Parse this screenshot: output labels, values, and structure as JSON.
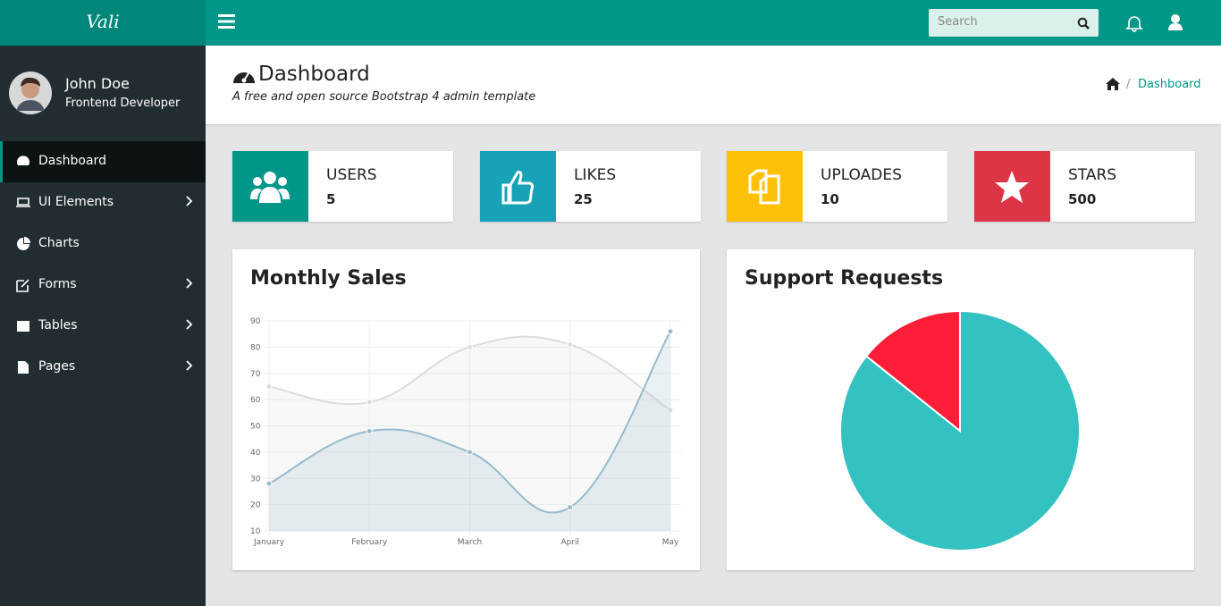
{
  "header": {
    "brand": "Vali",
    "search_placeholder": "Search"
  },
  "sidebar": {
    "user": {
      "name": "John Doe",
      "role": "Frontend Developer"
    },
    "menu": [
      "Dashboard",
      "UI Elements",
      "Charts",
      "Forms",
      "Tables",
      "Pages"
    ]
  },
  "page": {
    "title": "Dashboard",
    "subtitle": "A free and open source Bootstrap 4 admin template",
    "breadcrumb": "Dashboard"
  },
  "widgets": [
    {
      "label": "USERS",
      "value": "5",
      "color": "#009688"
    },
    {
      "label": "LIKES",
      "value": "25",
      "color": "#17a2b8"
    },
    {
      "label": "UPLOADES",
      "value": "10",
      "color": "#ffc107"
    },
    {
      "label": "STARS",
      "value": "500",
      "color": "#dc3545"
    }
  ],
  "chart_data": [
    {
      "type": "line",
      "title": "Monthly Sales",
      "categories": [
        "January",
        "February",
        "March",
        "April",
        "May"
      ],
      "series": [
        {
          "color": "#dcdcdc",
          "values": [
            65,
            59,
            80,
            81,
            56
          ]
        },
        {
          "color": "#97bbcd",
          "values": [
            28,
            48,
            40,
            19,
            86
          ]
        }
      ],
      "ylim": [
        10,
        90
      ],
      "yticks": [
        10,
        20,
        30,
        40,
        50,
        60,
        70,
        80,
        90
      ],
      "grid": true
    },
    {
      "type": "pie",
      "title": "Support Requests",
      "values": [
        300,
        50
      ],
      "colors": [
        "#33c2c1",
        "#ff1d38"
      ]
    }
  ]
}
